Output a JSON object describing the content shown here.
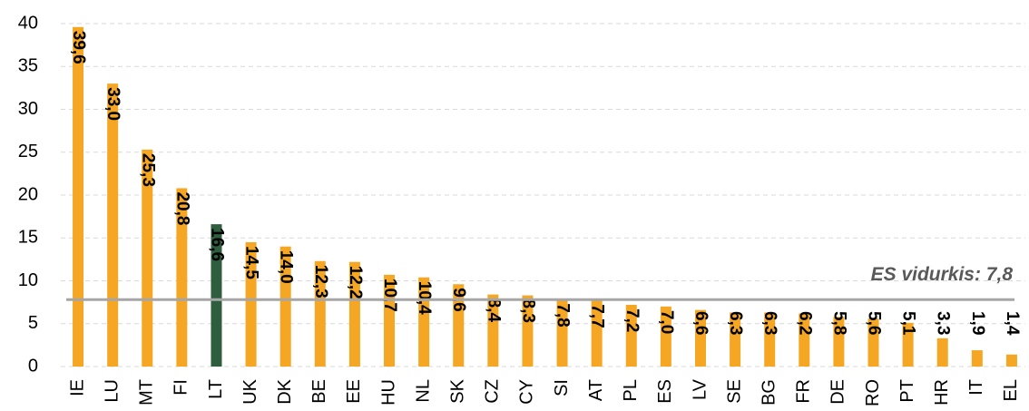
{
  "chart_data": {
    "type": "bar",
    "categories": [
      "IE",
      "LU",
      "MT",
      "FI",
      "LT",
      "UK",
      "DK",
      "BE",
      "EE",
      "HU",
      "NL",
      "SK",
      "CZ",
      "CY",
      "SI",
      "AT",
      "PL",
      "ES",
      "LV",
      "SE",
      "BG",
      "FR",
      "DE",
      "RO",
      "PT",
      "HR",
      "IT",
      "EL"
    ],
    "values": [
      39.6,
      33.0,
      25.3,
      20.8,
      16.6,
      14.5,
      14.0,
      12.3,
      12.2,
      10.7,
      10.4,
      9.6,
      8.4,
      8.3,
      7.8,
      7.7,
      7.2,
      7.0,
      6.6,
      6.3,
      6.3,
      6.2,
      5.8,
      5.6,
      5.1,
      3.3,
      1.9,
      1.4
    ],
    "value_labels": [
      "39,6",
      "33,0",
      "25,3",
      "20,8",
      "16,6",
      "14,5",
      "14,0",
      "12,3",
      "12,2",
      "10,7",
      "10,4",
      "9,6",
      "8,4",
      "8,3",
      "7,8",
      "7,7",
      "7,2",
      "7,0",
      "6,6",
      "6,3",
      "6,3",
      "6,2",
      "5,8",
      "5,6",
      "5,1",
      "3,3",
      "1,9",
      "1,4"
    ],
    "colors": [
      "#f5a623",
      "#f5a623",
      "#f5a623",
      "#f5a623",
      "#2e5e3e",
      "#f5a623",
      "#f5a623",
      "#f5a623",
      "#f5a623",
      "#f5a623",
      "#f5a623",
      "#f5a623",
      "#f5a623",
      "#f5a623",
      "#f5a623",
      "#f5a623",
      "#f5a623",
      "#f5a623",
      "#f5a623",
      "#f5a623",
      "#f5a623",
      "#f5a623",
      "#f5a623",
      "#f5a623",
      "#f5a623",
      "#f5a623",
      "#f5a623",
      "#f5a623"
    ],
    "average": {
      "value": 7.8,
      "label": "ES vidurkis: 7,8",
      "color": "#a6a6a6"
    },
    "ylim": [
      0,
      40
    ],
    "yticks": [
      0,
      5,
      10,
      15,
      20,
      25,
      30,
      35,
      40
    ],
    "grid": true
  }
}
